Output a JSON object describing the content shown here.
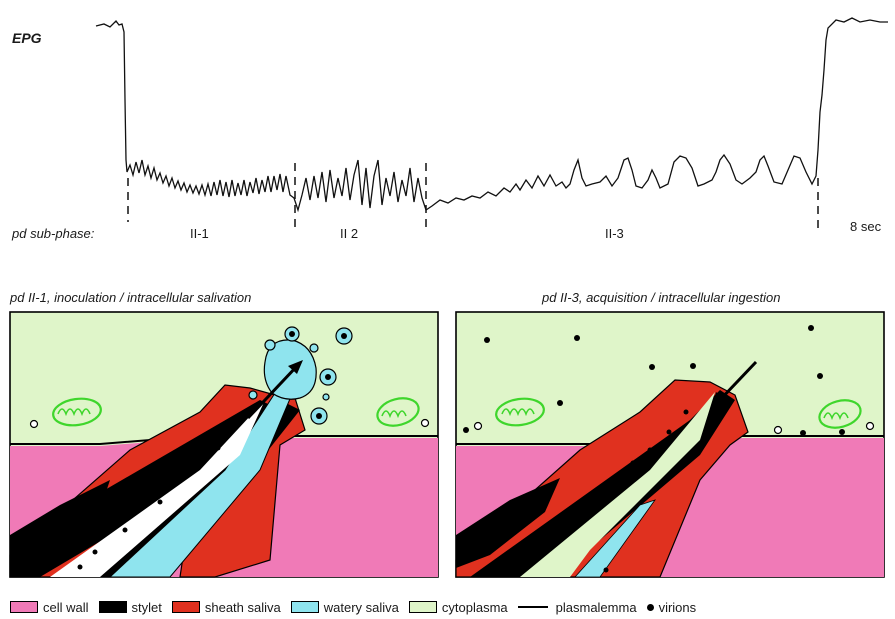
{
  "epg": {
    "label": "EPG",
    "phase_label": "pd sub-phase:",
    "phases": [
      "II-1",
      "II 2",
      "II-3"
    ],
    "time_label": "8 sec"
  },
  "panels": {
    "left_title": "pd II-1, inoculation / intracellular salivation",
    "right_title": "pd II-3, acquisition / intracellular ingestion"
  },
  "legend": [
    {
      "label": "cell wall",
      "color": "#f07ab7"
    },
    {
      "label": "stylet",
      "color": "#000000"
    },
    {
      "label": "sheath saliva",
      "color": "#e0311f"
    },
    {
      "label": "watery saliva",
      "color": "#8fe4ee"
    },
    {
      "label": "cytoplasma",
      "color": "#dff5c9"
    },
    {
      "label": "plasmalemma",
      "color": "#000000"
    },
    {
      "label": "virions",
      "color": "#000000"
    }
  ]
}
